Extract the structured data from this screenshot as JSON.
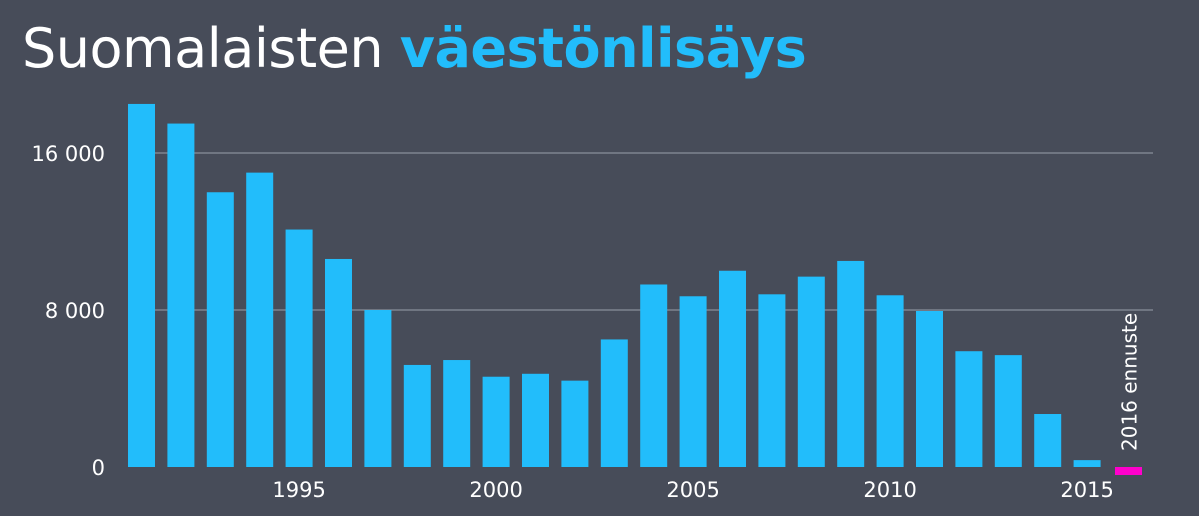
{
  "title": {
    "part1": "Suomalaisten",
    "part2": "väestönlisäys"
  },
  "colors": {
    "background": "#474c59",
    "bar": "#22bdfb",
    "forecast": "#ff00cc",
    "title_highlight": "#22bdfb"
  },
  "chart_data": {
    "type": "bar",
    "title": "Suomalaisten väestönlisäys",
    "categories": [
      1991,
      1992,
      1993,
      1994,
      1995,
      1996,
      1997,
      1998,
      1999,
      2000,
      2001,
      2002,
      2003,
      2004,
      2005,
      2006,
      2007,
      2008,
      2009,
      2010,
      2011,
      2012,
      2013,
      2014,
      2015,
      2016
    ],
    "values": [
      18500,
      17500,
      14000,
      15000,
      12100,
      10600,
      8000,
      5200,
      5450,
      4600,
      4750,
      4400,
      6500,
      9300,
      8700,
      10000,
      8800,
      9700,
      10500,
      8750,
      7950,
      5900,
      5700,
      2700,
      350,
      -150
    ],
    "forecast_index": 25,
    "forecast_label": "2016 ennuste",
    "xticks": [
      1995,
      2000,
      2005,
      2010,
      2015
    ],
    "yticks": [
      0,
      8000,
      16000
    ],
    "ytick_labels": [
      "0",
      "8 000",
      "16 000"
    ],
    "ylim": [
      0,
      18500
    ],
    "xlabel": "",
    "ylabel": "",
    "grid": true
  }
}
